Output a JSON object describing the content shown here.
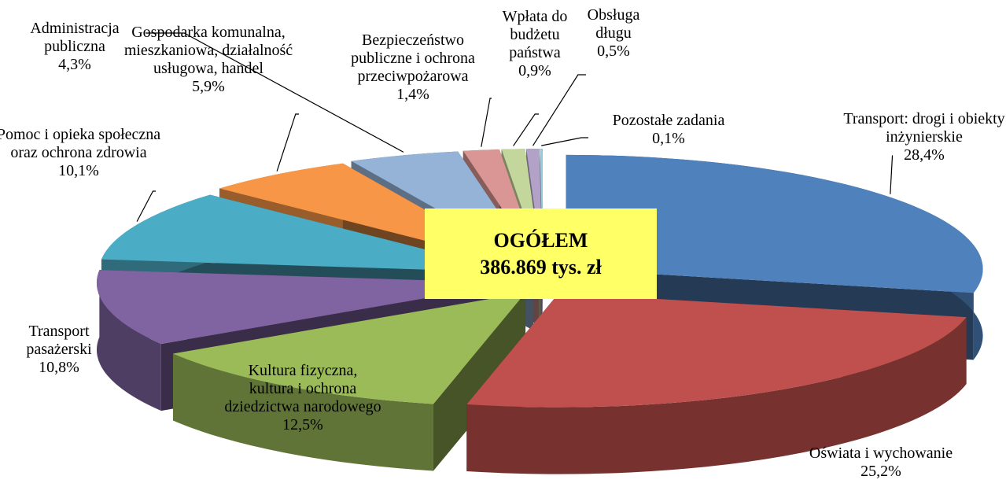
{
  "chart_data": {
    "type": "pie",
    "three_d": true,
    "exploded": true,
    "categories": [
      "Transport: drogi i obiekty inżynierskie",
      "Oświata i wychowanie",
      "Kultura fizyczna, kultura i ochrona dziedzictwa narodowego",
      "Transport pasażerski",
      "Pomoc i opieka społeczna oraz ochrona zdrowia",
      "Gospodarka komunalna, mieszkaniowa, działalność usługowa, handel",
      "Administracja publiczna",
      "Bezpieczeństwo publiczne i ochrona przeciwpożarowa",
      "Wpłata do budżetu państwa",
      "Obsługa długu",
      "Pozostałe zadania"
    ],
    "values": [
      28.4,
      25.2,
      12.5,
      10.8,
      10.1,
      5.9,
      4.3,
      1.4,
      0.9,
      0.5,
      0.1
    ],
    "value_labels": [
      "28,4%",
      "25,2%",
      "12,5%",
      "10,8%",
      "10,1%",
      "5,9%",
      "4,3%",
      "1,4%",
      "0,9%",
      "0,5%",
      "0,1%"
    ],
    "colors": [
      "#4f81bd",
      "#c0504d",
      "#9bbb59",
      "#8064a2",
      "#4bacc6",
      "#f79646",
      "#95b3d7",
      "#d99694",
      "#c3d69b",
      "#b3a2c7",
      "#93cddd"
    ],
    "center_label": [
      "OGÓŁEM",
      "386.869 tys. zł"
    ]
  }
}
